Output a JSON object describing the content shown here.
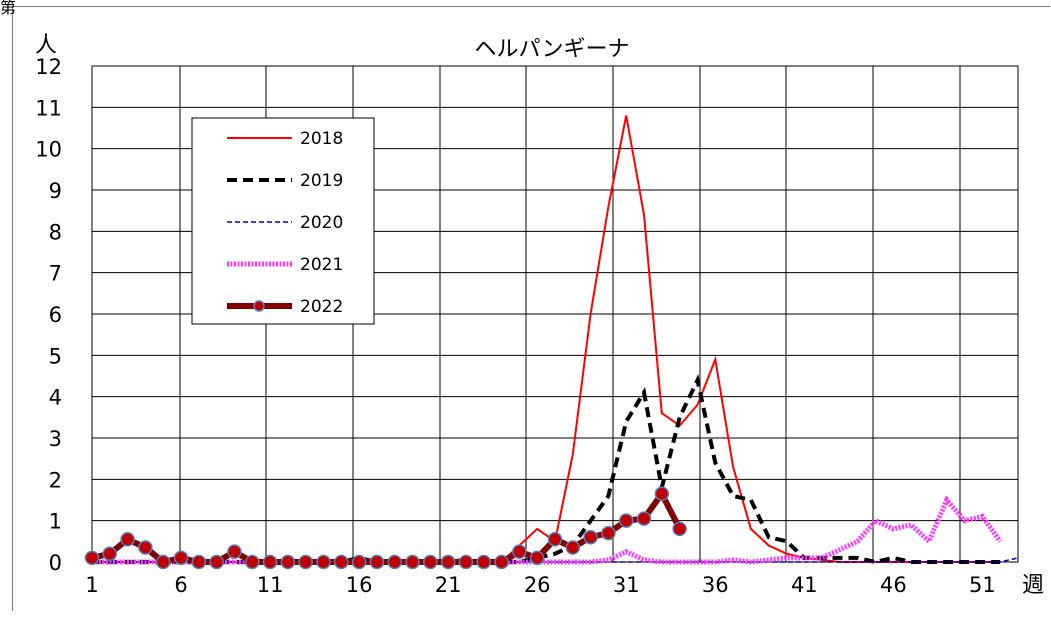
{
  "corner_label": "第",
  "chart_data": {
    "type": "line",
    "title": "ヘルパンギーナ",
    "ylabel": "人",
    "xlabel": "週",
    "ylim": [
      0,
      12
    ],
    "xlim": [
      1,
      53
    ],
    "yticks": [
      0,
      1,
      2,
      3,
      4,
      5,
      6,
      7,
      8,
      9,
      10,
      11,
      12
    ],
    "xticks": [
      1,
      6,
      11,
      16,
      21,
      26,
      31,
      36,
      41,
      46,
      51
    ],
    "grid": true,
    "legend_position": "upper-left",
    "series": [
      {
        "name": "2018",
        "color": "#ff0000",
        "style": "solid-thin",
        "x": [
          1,
          2,
          3,
          4,
          5,
          6,
          7,
          8,
          9,
          10,
          11,
          12,
          13,
          14,
          15,
          16,
          17,
          18,
          19,
          20,
          21,
          22,
          23,
          24,
          25,
          26,
          27,
          28,
          29,
          30,
          31,
          32,
          33,
          34,
          35,
          36,
          37,
          38,
          39,
          40,
          41,
          42,
          43,
          44,
          45,
          46,
          47,
          48,
          49,
          50,
          51,
          52
        ],
        "y": [
          0,
          0,
          0,
          0,
          0,
          0,
          0,
          0,
          0,
          0,
          0,
          0,
          0,
          0,
          0,
          0,
          0,
          0,
          0,
          0,
          0,
          0,
          0,
          0,
          0.4,
          0.8,
          0.5,
          2.6,
          6.0,
          8.6,
          10.8,
          8.4,
          3.6,
          3.3,
          3.8,
          4.9,
          2.3,
          0.8,
          0.4,
          0.2,
          0.1,
          0.05,
          0,
          0,
          0,
          0,
          0,
          0,
          0,
          0,
          0,
          0
        ]
      },
      {
        "name": "2019",
        "color": "#000000",
        "style": "dashed-thick",
        "x": [
          1,
          2,
          3,
          4,
          5,
          6,
          7,
          8,
          9,
          10,
          11,
          12,
          13,
          14,
          15,
          16,
          17,
          18,
          19,
          20,
          21,
          22,
          23,
          24,
          25,
          26,
          27,
          28,
          29,
          30,
          31,
          32,
          33,
          34,
          35,
          36,
          37,
          38,
          39,
          40,
          41,
          42,
          43,
          44,
          45,
          46,
          47,
          48,
          49,
          50,
          51,
          52
        ],
        "y": [
          0,
          0,
          0,
          0,
          0,
          0,
          0,
          0,
          0,
          0,
          0,
          0,
          0,
          0,
          0,
          0.1,
          0,
          0,
          0,
          0,
          0.1,
          0,
          0,
          0,
          0,
          0.1,
          0.2,
          0.4,
          1.0,
          1.6,
          3.4,
          4.1,
          1.8,
          3.5,
          4.4,
          2.4,
          1.6,
          1.5,
          0.6,
          0.5,
          0.1,
          0.1,
          0.1,
          0.1,
          0,
          0.1,
          0,
          0,
          0,
          0,
          0,
          0
        ]
      },
      {
        "name": "2020",
        "color": "#0000cc",
        "style": "dashed-thin",
        "x": [
          1,
          2,
          3,
          4,
          5,
          6,
          7,
          8,
          9,
          10,
          11,
          12,
          13,
          14,
          15,
          16,
          17,
          18,
          19,
          20,
          21,
          22,
          23,
          24,
          25,
          26,
          27,
          28,
          29,
          30,
          31,
          32,
          33,
          34,
          35,
          36,
          37,
          38,
          39,
          40,
          41,
          42,
          43,
          44,
          45,
          46,
          47,
          48,
          49,
          50,
          51,
          52,
          53
        ],
        "y": [
          0,
          0,
          0,
          0,
          0,
          0,
          0,
          0,
          0,
          0,
          0,
          0,
          0,
          0,
          0,
          0,
          0,
          0,
          0,
          0,
          0,
          0,
          0,
          0,
          0,
          0,
          0,
          0,
          0,
          0,
          0,
          0,
          0,
          0,
          0,
          0,
          0,
          0,
          0,
          0,
          0,
          0,
          0,
          0,
          0,
          0,
          0,
          0,
          0,
          0,
          0,
          0,
          0.1
        ]
      },
      {
        "name": "2021",
        "color": "#ff33ff",
        "style": "dotted-thick",
        "x": [
          1,
          2,
          3,
          4,
          5,
          6,
          7,
          8,
          9,
          10,
          11,
          12,
          13,
          14,
          15,
          16,
          17,
          18,
          19,
          20,
          21,
          22,
          23,
          24,
          25,
          26,
          27,
          28,
          29,
          30,
          31,
          32,
          33,
          34,
          35,
          36,
          37,
          38,
          39,
          40,
          41,
          42,
          43,
          44,
          45,
          46,
          47,
          48,
          49,
          50,
          51,
          52
        ],
        "y": [
          0,
          0,
          0,
          0,
          0,
          0,
          0,
          0,
          0,
          0,
          0,
          0,
          0,
          0,
          0,
          0,
          0,
          0,
          0,
          0,
          0,
          0,
          0,
          0,
          0,
          0,
          0,
          0,
          0,
          0.05,
          0.25,
          0.05,
          0,
          0,
          0,
          0,
          0.05,
          0,
          0.05,
          0.1,
          0.1,
          0.1,
          0.3,
          0.5,
          1.0,
          0.8,
          0.9,
          0.5,
          1.5,
          1.0,
          1.1,
          0.5
        ]
      },
      {
        "name": "2022",
        "color": "#800000",
        "style": "thick-markers",
        "x": [
          1,
          2,
          3,
          4,
          5,
          6,
          7,
          8,
          9,
          10,
          11,
          12,
          13,
          14,
          15,
          16,
          17,
          18,
          19,
          20,
          21,
          22,
          23,
          24,
          25,
          26,
          27,
          28,
          29,
          30,
          31,
          32,
          33,
          34
        ],
        "y": [
          0.1,
          0.2,
          0.55,
          0.35,
          0,
          0.1,
          0,
          0,
          0.25,
          0,
          0,
          0,
          0,
          0,
          0,
          0,
          0,
          0,
          0,
          0,
          0,
          0,
          0,
          0,
          0.25,
          0.1,
          0.55,
          0.35,
          0.6,
          0.7,
          1.0,
          1.05,
          1.65,
          0.8
        ]
      }
    ]
  }
}
